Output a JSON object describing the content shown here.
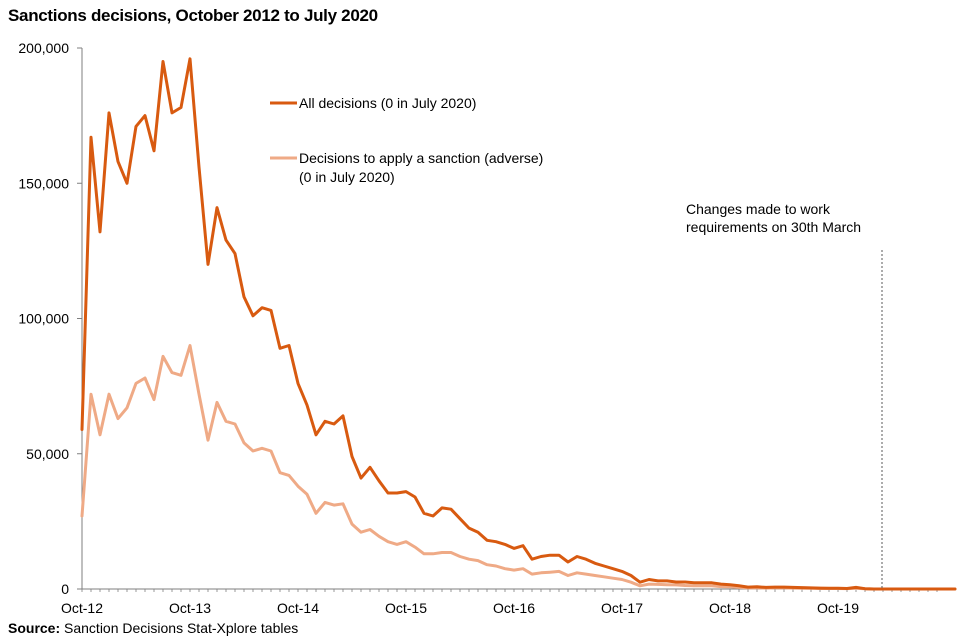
{
  "chart_title": "Sanctions decisions, October 2012 to July 2020",
  "source": {
    "label": "Source:",
    "text": "Sanction Decisions Stat-Xplore tables"
  },
  "annotation": {
    "line1": "Changes made to work",
    "line2": "requirements on 30th March"
  },
  "colors": {
    "all": "#d85a10",
    "adverse": "#efaa86",
    "axis": "#7f7f7f",
    "marker": "#595959"
  },
  "chart_data": {
    "type": "line",
    "title": "Sanctions decisions, October 2012 to July 2020",
    "xlabel": "",
    "ylabel": "",
    "ylim": [
      0,
      200000
    ],
    "yticks": [
      0,
      50000,
      100000,
      150000,
      200000
    ],
    "ytick_labels": [
      "0",
      "50,000",
      "100,000",
      "150,000",
      "200,000"
    ],
    "x_start": "Oct-12",
    "x_end": "Jul-20",
    "xtick_labels": [
      "Oct-12",
      "Oct-13",
      "Oct-14",
      "Oct-15",
      "Oct-16",
      "Oct-17",
      "Oct-18",
      "Oct-19"
    ],
    "vertical_marker": "Mar-20",
    "legend_position": "top-center",
    "series": [
      {
        "name": "All decisions (0 in July 2020)",
        "key": "all",
        "values": [
          59000,
          167000,
          132000,
          176000,
          158000,
          150000,
          171000,
          175000,
          162000,
          195000,
          176000,
          178000,
          196000,
          156000,
          120000,
          141000,
          129000,
          124000,
          108000,
          101000,
          104000,
          103000,
          89000,
          90000,
          76000,
          68000,
          57000,
          62000,
          61000,
          64000,
          49000,
          41000,
          45000,
          40000,
          35500,
          35500,
          36000,
          34000,
          28000,
          27000,
          30000,
          29500,
          26000,
          22500,
          21000,
          18000,
          17500,
          16500,
          15000,
          16000,
          11000,
          12000,
          12500,
          12500,
          10000,
          12000,
          11000,
          9500,
          8500,
          7500,
          6500,
          5000,
          2500,
          3500,
          3000,
          3000,
          2600,
          2600,
          2300,
          2300,
          2300,
          1800,
          1600,
          1200,
          700,
          800,
          600,
          700,
          700,
          600,
          500,
          400,
          350,
          300,
          300,
          200,
          600,
          100,
          0,
          0,
          0,
          0,
          0,
          0,
          0,
          0,
          0,
          0
        ],
        "line_label": "All decisions (0 in July 2020)"
      },
      {
        "name": "Decisions to apply a sanction (adverse) (0 in July 2020)",
        "key": "adverse",
        "values": [
          27000,
          72000,
          57000,
          72000,
          63000,
          67000,
          76000,
          78000,
          70000,
          86000,
          80000,
          79000,
          90000,
          72000,
          55000,
          69000,
          62000,
          61000,
          54000,
          51000,
          52000,
          51000,
          43000,
          42000,
          38000,
          35000,
          28000,
          32000,
          31000,
          31500,
          24000,
          21000,
          22000,
          19500,
          17500,
          16500,
          17500,
          15500,
          13000,
          13000,
          13500,
          13500,
          12000,
          11000,
          10500,
          9000,
          8500,
          7500,
          7000,
          7500,
          5500,
          6000,
          6200,
          6500,
          5000,
          6000,
          5500,
          5000,
          4500,
          4000,
          3500,
          2500,
          1200,
          1800,
          1700,
          1600,
          1500,
          1300,
          1200,
          1200,
          1200,
          900,
          800,
          600,
          400,
          450,
          350,
          400,
          400,
          350,
          300,
          250,
          200,
          200,
          200,
          150,
          300,
          80,
          0,
          0,
          0,
          0,
          0,
          0,
          0,
          0,
          0,
          0
        ],
        "line_label_1": "Decisions to apply a sanction (adverse)",
        "line_label_2": "(0 in July 2020)"
      }
    ]
  }
}
